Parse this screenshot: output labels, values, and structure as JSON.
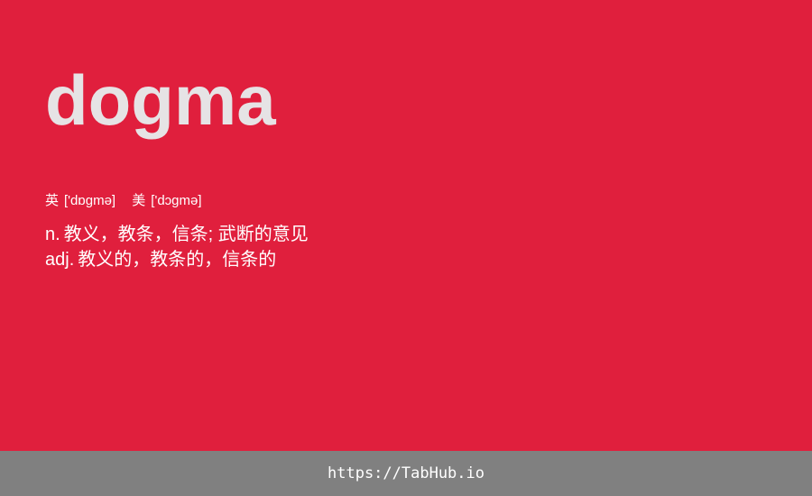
{
  "colors": {
    "card_background": "#e01f3d",
    "word_text": "#e6e3e5",
    "body_text": "#ffffff",
    "footer_background": "#808080"
  },
  "entry": {
    "word": "dogma",
    "phonetics": [
      {
        "label": "英",
        "ipa": "['dɒgmə]"
      },
      {
        "label": "美",
        "ipa": "['dɔgmə]"
      }
    ],
    "definitions": [
      {
        "pos": "n.",
        "meaning": "教义，教条，信条; 武断的意见"
      },
      {
        "pos": "adj.",
        "meaning": "教义的，教条的，信条的"
      }
    ]
  },
  "footer": {
    "link": "https://TabHub.io"
  }
}
